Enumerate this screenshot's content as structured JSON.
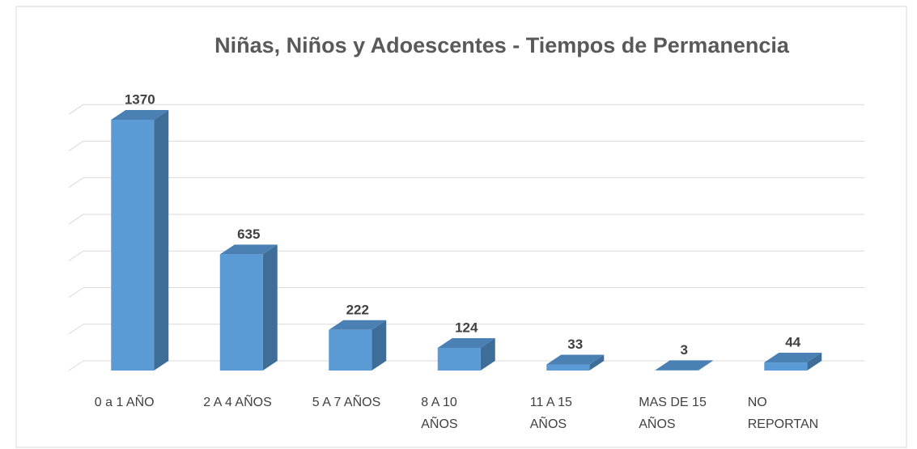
{
  "chart_data": {
    "type": "bar3d",
    "title": "Niñas, Niños y Adoescentes - Tiempos de Permanencia",
    "categories": [
      "0 a 1 AÑO",
      "2 A 4 AÑOS",
      "5 A 7 AÑOS",
      "8 A 10 AÑOS",
      "11 A 15 AÑOS",
      "MAS DE 15 AÑOS",
      "NO REPORTAN"
    ],
    "values": [
      1370,
      635,
      222,
      124,
      33,
      3,
      44
    ],
    "color": "#5b9bd5",
    "ylim": [
      0,
      1400
    ],
    "yticks": [
      0,
      200,
      400,
      600,
      800,
      1000,
      1200,
      1400
    ],
    "grid": true
  }
}
